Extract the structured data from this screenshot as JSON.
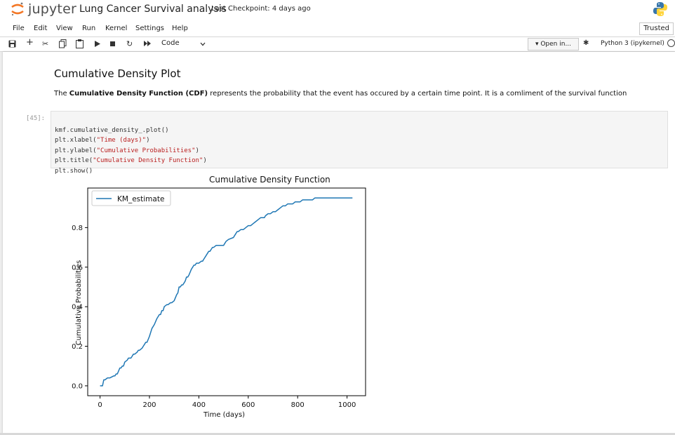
{
  "app": {
    "logo_text": "jupyter",
    "notebook_title": "Lung Cancer Survival analysis",
    "checkpoint": "Last Checkpoint: 4 days ago"
  },
  "menu": {
    "items": [
      "File",
      "Edit",
      "View",
      "Run",
      "Kernel",
      "Settings",
      "Help"
    ],
    "trusted": "Trusted"
  },
  "toolbar": {
    "cell_type": "Code",
    "open_in": "Open in...",
    "kernel": "Python 3 (ipykernel)",
    "icons": [
      "save-icon",
      "add-cell-icon",
      "cut-icon",
      "copy-icon",
      "paste-icon",
      "run-icon",
      "stop-icon",
      "restart-icon",
      "fast-forward-icon",
      "chevron-down-icon"
    ]
  },
  "notebook": {
    "heading": "Cumulative Density Plot",
    "para_prefix": "The ",
    "para_bold": "Cumulative Density Function (CDF)",
    "para_rest": " represents the probability that the event has occured by a certain time point. It is a comliment of the survival function",
    "prompt": "[45]:",
    "code_lines": [
      {
        "pre": "kmf.cumulative_density_.plot()",
        "str": "",
        "post": ""
      },
      {
        "pre": "plt.xlabel(",
        "str": "\"Time (days)\"",
        "post": ")"
      },
      {
        "pre": "plt.ylabel(",
        "str": "\"Cumulative Probabilities\"",
        "post": ")"
      },
      {
        "pre": "plt.title(",
        "str": "\"Cumulative Density Function\"",
        "post": ")"
      },
      {
        "pre": "plt.show()",
        "str": "",
        "post": ""
      }
    ]
  },
  "chart_data": {
    "type": "line",
    "title": "Cumulative Density Function",
    "xlabel": "Time (days)",
    "ylabel": "Cumulative Probabilities",
    "xlim": [
      -50,
      1075
    ],
    "ylim": [
      -0.05,
      1.0
    ],
    "xticks": [
      "0",
      "200",
      "400",
      "600",
      "800",
      "1000"
    ],
    "yticks": [
      "0.0",
      "0.2",
      "0.4",
      "0.6",
      "0.8"
    ],
    "legend": "top-left",
    "grid": false,
    "color": "#1f77b4",
    "series": [
      {
        "name": "KM_estimate",
        "x": [
          0,
          10,
          15,
          20,
          30,
          40,
          55,
          60,
          65,
          70,
          80,
          85,
          90,
          95,
          100,
          110,
          115,
          125,
          130,
          135,
          140,
          150,
          155,
          160,
          170,
          175,
          180,
          185,
          190,
          200,
          210,
          220,
          230,
          240,
          245,
          250,
          255,
          260,
          270,
          275,
          285,
          290,
          300,
          310,
          315,
          320,
          325,
          330,
          335,
          340,
          345,
          350,
          355,
          360,
          370,
          375,
          380,
          385,
          390,
          400,
          410,
          415,
          420,
          430,
          440,
          445,
          450,
          455,
          460,
          470,
          480,
          490,
          500,
          510,
          520,
          540,
          545,
          550,
          555,
          560,
          570,
          580,
          590,
          600,
          610,
          620,
          630,
          640,
          650,
          660,
          665,
          670,
          680,
          690,
          700,
          710,
          720,
          730,
          740,
          750,
          760,
          770,
          780,
          790,
          800,
          810,
          820,
          830,
          840,
          850,
          860,
          870,
          880,
          890,
          900,
          910,
          920,
          930,
          940,
          950,
          960,
          970,
          980,
          990,
          1000,
          1010,
          1022
        ],
        "y": [
          0.0,
          0.0,
          0.03,
          0.03,
          0.04,
          0.04,
          0.05,
          0.05,
          0.06,
          0.06,
          0.09,
          0.09,
          0.1,
          0.1,
          0.12,
          0.13,
          0.14,
          0.14,
          0.15,
          0.16,
          0.16,
          0.17,
          0.18,
          0.18,
          0.19,
          0.2,
          0.21,
          0.22,
          0.22,
          0.25,
          0.29,
          0.31,
          0.34,
          0.36,
          0.36,
          0.38,
          0.38,
          0.4,
          0.41,
          0.41,
          0.42,
          0.42,
          0.43,
          0.46,
          0.47,
          0.5,
          0.5,
          0.51,
          0.51,
          0.52,
          0.53,
          0.55,
          0.55,
          0.56,
          0.59,
          0.6,
          0.61,
          0.61,
          0.62,
          0.62,
          0.63,
          0.63,
          0.64,
          0.66,
          0.68,
          0.68,
          0.69,
          0.7,
          0.7,
          0.71,
          0.71,
          0.71,
          0.71,
          0.73,
          0.74,
          0.75,
          0.76,
          0.77,
          0.78,
          0.78,
          0.79,
          0.79,
          0.8,
          0.81,
          0.81,
          0.82,
          0.83,
          0.84,
          0.85,
          0.85,
          0.85,
          0.86,
          0.87,
          0.87,
          0.88,
          0.88,
          0.89,
          0.9,
          0.91,
          0.91,
          0.92,
          0.92,
          0.92,
          0.93,
          0.93,
          0.93,
          0.94,
          0.94,
          0.94,
          0.94,
          0.94,
          0.95,
          0.95,
          0.95,
          0.95,
          0.95,
          0.95,
          0.95,
          0.95,
          0.95,
          0.95,
          0.95,
          0.95,
          0.95,
          0.95,
          0.95,
          0.95
        ]
      }
    ]
  }
}
